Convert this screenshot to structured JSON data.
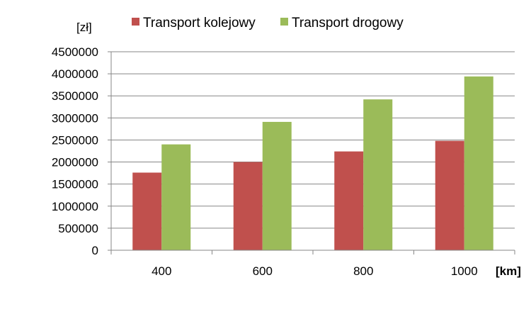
{
  "chart_data": {
    "type": "bar",
    "categories": [
      "400",
      "600",
      "800",
      "1000"
    ],
    "series": [
      {
        "name": "Transport kolejowy",
        "color": "#c0504d",
        "values": [
          1760000,
          2000000,
          2240000,
          2480000
        ]
      },
      {
        "name": "Transport drogowy",
        "color": "#9bbb59",
        "values": [
          2400000,
          2910000,
          3420000,
          3940000
        ]
      }
    ],
    "title": "",
    "ylabel": "[zł]",
    "xlabel": "[km]",
    "ylim": [
      0,
      4500000
    ],
    "yticks": [
      0,
      500000,
      1000000,
      1500000,
      2000000,
      2500000,
      3000000,
      3500000,
      4000000,
      4500000
    ],
    "grid": true,
    "legend_position": "top"
  }
}
